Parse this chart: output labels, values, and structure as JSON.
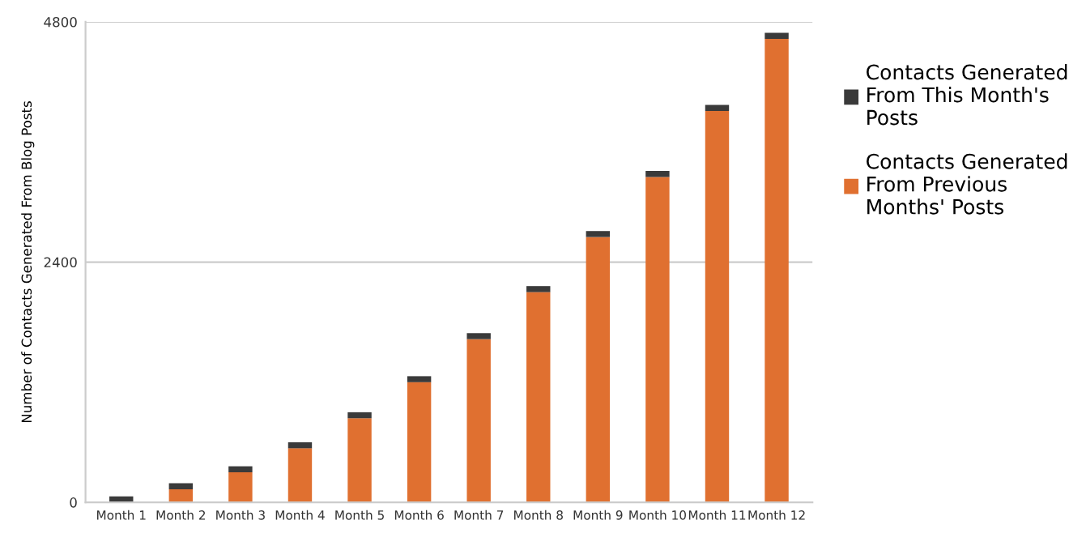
{
  "chart_data": {
    "type": "bar",
    "stacked": true,
    "ylabel": "Number of Contacts Generated From Blog Posts",
    "categories": [
      "Month 1",
      "Month 2",
      "Month 3",
      "Month 4",
      "Month 5",
      "Month 6",
      "Month 7",
      "Month 8",
      "Month 9",
      "Month 10",
      "Month 11",
      "Month 12"
    ],
    "series": [
      {
        "name": "Contacts Generated From Previous Months' Posts",
        "color": "#e07030",
        "values": [
          0,
          130,
          300,
          540,
          840,
          1200,
          1630,
          2100,
          2650,
          3250,
          3910,
          4630
        ]
      },
      {
        "name": "Contacts Generated From This Month's Posts",
        "color": "#3a3a3a",
        "values": [
          60,
          60,
          60,
          60,
          60,
          60,
          60,
          60,
          60,
          60,
          60,
          60
        ]
      }
    ],
    "ylim": [
      0,
      4800
    ],
    "yticks": [
      0,
      2400,
      4800
    ],
    "grid": "y",
    "legend": "right"
  }
}
